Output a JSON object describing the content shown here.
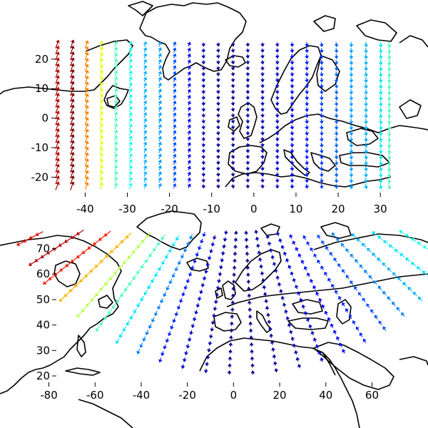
{
  "chart_data": [
    {
      "type": "quiver-map",
      "projection": "rotated-pole (cylindrical)",
      "x_ticks": [
        "-40",
        "-30",
        "-20",
        "-10",
        "0",
        "10",
        "20",
        "30"
      ],
      "y_ticks": [
        "20",
        "10",
        "0",
        "-10",
        "-20"
      ],
      "xlim": [
        -47,
        32
      ],
      "ylim": [
        -24,
        26
      ],
      "colormap": "jet",
      "vector_columns_x": [
        -47,
        -43.5,
        -40,
        -36.5,
        -33,
        -29.5,
        -26,
        -22.5,
        -19,
        -15.5,
        -12,
        -8.5,
        -5,
        -1.5,
        2,
        5.5,
        9,
        12.5,
        16,
        19.5,
        23,
        26.5,
        30,
        32
      ],
      "column_speed": [
        0.95,
        1.0,
        0.75,
        0.6,
        0.45,
        0.4,
        0.3,
        0.28,
        0.2,
        0.12,
        0.05,
        0.02,
        0.02,
        0.03,
        0.05,
        0.08,
        0.12,
        0.15,
        0.18,
        0.22,
        0.28,
        0.3,
        0.35,
        0.45
      ],
      "y_rows": [
        -23,
        -21,
        -19,
        -17,
        -15,
        -13,
        -11,
        -9,
        -7,
        -5,
        -3,
        -1,
        1,
        3,
        5,
        7,
        9,
        11,
        13,
        15,
        17,
        19,
        21,
        23,
        25
      ]
    },
    {
      "type": "quiver-map",
      "projection": "lat/lon",
      "x_ticks": [
        "-80",
        "-60",
        "-40",
        "-20",
        "0",
        "20",
        "40",
        "60"
      ],
      "y_ticks": [
        "70",
        "60",
        "50",
        "40",
        "30",
        "20"
      ],
      "xlim": [
        -95,
        75
      ],
      "ylim": [
        13,
        78
      ],
      "colormap": "jet",
      "vector_arc_count": 24,
      "arc_speed": [
        0.9,
        0.95,
        0.85,
        0.7,
        0.55,
        0.45,
        0.35,
        0.25,
        0.15,
        0.08,
        0.04,
        0.02,
        0.02,
        0.03,
        0.05,
        0.08,
        0.12,
        0.16,
        0.2,
        0.25,
        0.3,
        0.35,
        0.4,
        0.45
      ]
    }
  ]
}
